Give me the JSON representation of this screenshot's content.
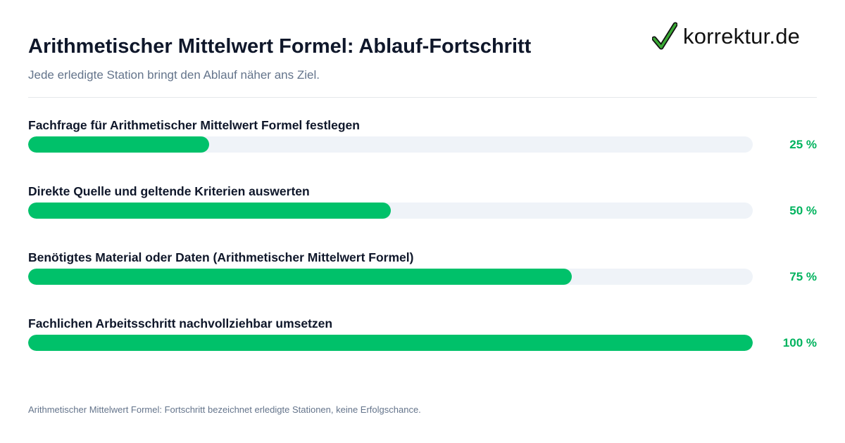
{
  "header": {
    "title": "Arithmetischer Mittelwert Formel: Ablauf-Fortschritt",
    "subtitle": "Jede erledigte Station bringt den Ablauf näher ans Ziel."
  },
  "logo": {
    "text": "korrektur.de",
    "icon": "checkmark-icon",
    "icon_color": "#3aa935"
  },
  "colors": {
    "fill": "#00c16a",
    "track": "#eff3f8",
    "percent_text": "#00b35e"
  },
  "chart_data": {
    "type": "bar",
    "orientation": "horizontal",
    "categories": [
      "Fachfrage für Arithmetischer Mittelwert Formel festlegen",
      "Direkte Quelle und geltende Kriterien auswerten",
      "Benötigtes Material oder Daten (Arithmetischer Mittelwert Formel)",
      "Fachlichen Arbeitsschritt nachvollziehbar umsetzen"
    ],
    "values": [
      25,
      50,
      75,
      100
    ],
    "value_labels": [
      "25 %",
      "50 %",
      "75 %",
      "100 %"
    ],
    "xlim": [
      0,
      100
    ],
    "grid": false
  },
  "footnote": "Arithmetischer Mittelwert Formel: Fortschritt bezeichnet erledigte Stationen, keine Erfolgschance."
}
